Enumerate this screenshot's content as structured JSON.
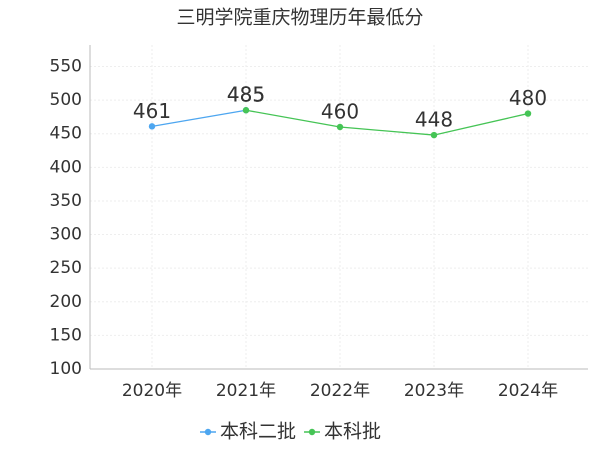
{
  "chart_data": {
    "type": "line",
    "title": "三明学院重庆物理历年最低分",
    "categories": [
      "2020年",
      "2021年",
      "2022年",
      "2023年",
      "2024年"
    ],
    "series": [
      {
        "name": "本科二批",
        "color": "#4da6f0",
        "values": [
          461,
          485,
          null,
          null,
          null
        ]
      },
      {
        "name": "本科批",
        "color": "#45c455",
        "values": [
          null,
          485,
          460,
          448,
          480
        ]
      }
    ],
    "ylim": [
      100,
      582
    ],
    "yticks": [
      100,
      150,
      200,
      250,
      300,
      350,
      400,
      450,
      500,
      550
    ],
    "grid": true,
    "legend": "bottom"
  }
}
